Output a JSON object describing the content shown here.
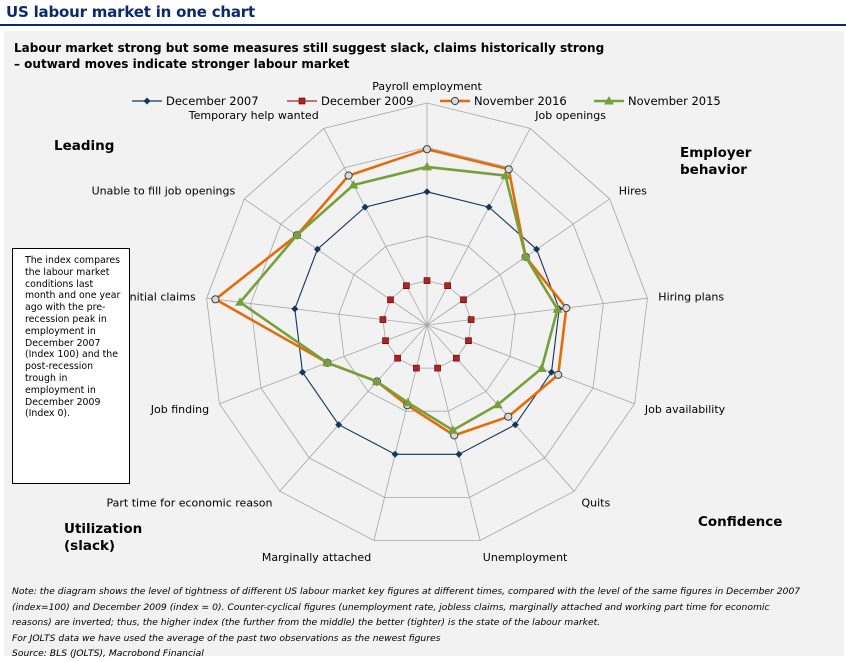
{
  "header": {
    "title": "US labour market in one chart",
    "subtitle_line1": "Labour market strong but some measures still suggest slack, claims historically strong",
    "subtitle_line2": "– outward moves indicate stronger labour market"
  },
  "note_box": "The index compares the labour market conditions last month and one year ago with the pre-recession peak in employment in December 2007 (Index 100) and the post-recession trough in employment in December 2009 (Index 0).",
  "group_labels": {
    "leading": "Leading",
    "employer": "Employer behavior",
    "confidence": "Confidence",
    "utilization": "Utilization (slack)"
  },
  "footer": {
    "note_line1": "Note: the diagram shows the level of tightness of different US labour market key figures at different times, compared with the level of the same figures in December 2007",
    "note_line2": "(index=100) and December 2009 (index = 0). Counter-cyclical figures (unemployment rate, jobless claims, marginally attached and working part time for economic",
    "note_line3": "reasons) are inverted; thus, the higher index (the further from the middle) the better (tighter) is the state of the labour market.",
    "note_line4": "For JOLTS data we have used the average of the past two observations as the newest figures",
    "source": "Source: BLS (JOLTS), Macrobond Financial"
  },
  "chart_data": {
    "type": "radar",
    "categories": [
      "Payroll employment",
      "Job openings",
      "Hires",
      "Hiring plans",
      "Job availability",
      "Quits",
      "Unemployment",
      "Marginally attached",
      "Part time for economic reason",
      "Job finding",
      "Initial claims",
      "Unable to fill job openings",
      "Temporary help wanted"
    ],
    "rmin": -50,
    "rmax": 200,
    "grid_levels": 5,
    "legend_position": "top",
    "series": [
      {
        "name": "December 2007",
        "color": "#17365d",
        "marker": "diamond",
        "values": [
          100,
          100,
          100,
          100,
          100,
          100,
          100,
          100,
          100,
          100,
          100,
          100,
          100
        ]
      },
      {
        "name": "December 2009",
        "color": "#b22222",
        "marker": "square",
        "values": [
          0,
          0,
          0,
          0,
          0,
          0,
          0,
          0,
          0,
          0,
          0,
          0,
          0
        ]
      },
      {
        "name": "November 2016",
        "color": "#e36c09",
        "marker": "circle",
        "values": [
          148,
          148,
          85,
          108,
          108,
          88,
          78,
          43,
          35,
          70,
          190,
          128,
          140
        ]
      },
      {
        "name": "November 2015",
        "color": "#77a03c",
        "marker": "triangle",
        "values": [
          128,
          140,
          85,
          98,
          88,
          70,
          72,
          40,
          35,
          70,
          162,
          128,
          128
        ]
      }
    ]
  }
}
